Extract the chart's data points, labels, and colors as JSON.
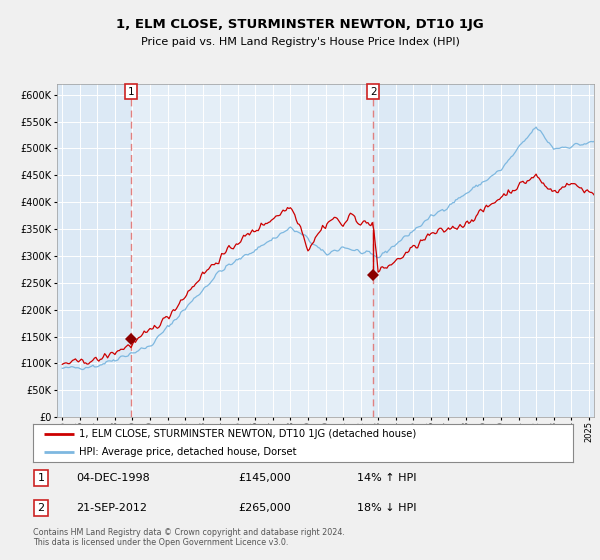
{
  "title": "1, ELM CLOSE, STURMINSTER NEWTON, DT10 1JG",
  "subtitle": "Price paid vs. HM Land Registry's House Price Index (HPI)",
  "legend_line1": "1, ELM CLOSE, STURMINSTER NEWTON, DT10 1JG (detached house)",
  "legend_line2": "HPI: Average price, detached house, Dorset",
  "annotation1_date": "04-DEC-1998",
  "annotation1_price": 145000,
  "annotation1_hpi": "14% ↑ HPI",
  "annotation2_date": "21-SEP-2012",
  "annotation2_price": 265000,
  "annotation2_hpi": "18% ↓ HPI",
  "footnote": "Contains HM Land Registry data © Crown copyright and database right 2024.\nThis data is licensed under the Open Government Licence v3.0.",
  "fig_bg_color": "#f0f0f0",
  "plot_bg_color": "#dce9f5",
  "grid_color": "#ffffff",
  "hpi_line_color": "#7eb8e0",
  "price_line_color": "#cc0000",
  "marker_color": "#8b0000",
  "vline1_color": "#e08080",
  "vline2_color": "#e08080",
  "shade_color": "#c8d8ee",
  "ylim_max": 620000,
  "yticks": [
    0,
    50000,
    100000,
    150000,
    200000,
    250000,
    300000,
    350000,
    400000,
    450000,
    500000,
    550000,
    600000
  ],
  "sale1_x": 1998.92,
  "sale2_x": 2012.72,
  "xmin": 1995.0,
  "xmax": 2025.3
}
